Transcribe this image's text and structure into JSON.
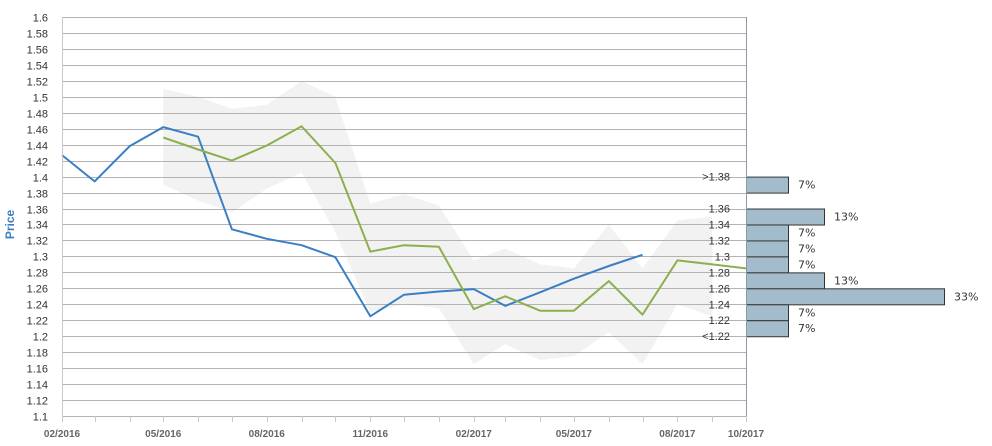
{
  "chart_data": {
    "type": "line",
    "ylabel": "Price",
    "ylim": [
      1.1,
      1.6
    ],
    "ytick_step": 0.02,
    "ytick_labels": [
      "1.1",
      "1.12",
      "1.14",
      "1.16",
      "1.18",
      "1.2",
      "1.22",
      "1.24",
      "1.26",
      "1.28",
      "1.3",
      "1.32",
      "1.34",
      "1.36",
      "1.38",
      "1.4",
      "1.42",
      "1.44",
      "1.46",
      "1.48",
      "1.5",
      "1.52",
      "1.54",
      "1.56",
      "1.58",
      "1.6"
    ],
    "xlim": [
      "2016-02-01",
      "2017-10-01"
    ],
    "x_tick_labels": [
      "02/2016",
      "05/2016",
      "08/2016",
      "11/2016",
      "02/2017",
      "05/2017",
      "08/2017",
      "10/2017"
    ],
    "x_tick_dates": [
      "2016-02-01",
      "2016-05-01",
      "2016-08-01",
      "2016-11-01",
      "2017-02-01",
      "2017-05-01",
      "2017-08-01",
      "2017-10-01"
    ],
    "grid": true,
    "colors": {
      "actual": "#3a7fc4",
      "forecast": "#8cb04e",
      "band": "#f2f2f2",
      "bar": "#a3bccb",
      "bar_stroke": "#333333",
      "ylabel": "#3a7fc4"
    },
    "series": [
      {
        "key": "actual",
        "x": [
          "2016-02-01",
          "2016-03-01",
          "2016-04-01",
          "2016-05-01",
          "2016-06-01",
          "2016-07-01",
          "2016-08-01",
          "2016-09-01",
          "2016-10-01",
          "2016-11-01",
          "2016-12-01",
          "2017-01-01",
          "2017-02-01",
          "2017-03-01",
          "2017-04-01",
          "2017-05-01",
          "2017-06-01",
          "2017-07-01"
        ],
        "y": [
          1.427,
          1.394,
          1.438,
          1.462,
          1.45,
          1.334,
          1.322,
          1.314,
          1.299,
          1.225,
          1.252,
          1.256,
          1.259,
          1.238,
          1.255,
          1.272,
          1.288,
          1.302
        ]
      },
      {
        "key": "forecast",
        "x": [
          "2016-05-01",
          "2016-06-01",
          "2016-07-01",
          "2016-08-01",
          "2016-09-01",
          "2016-10-01",
          "2016-11-01",
          "2016-12-01",
          "2017-01-01",
          "2017-02-01",
          "2017-03-01",
          "2017-04-01",
          "2017-05-01",
          "2017-06-01",
          "2017-07-01",
          "2017-08-01",
          "2017-09-01",
          "2017-10-01"
        ],
        "y": [
          1.449,
          1.434,
          1.42,
          1.439,
          1.463,
          1.417,
          1.306,
          1.314,
          1.312,
          1.234,
          1.25,
          1.232,
          1.232,
          1.269,
          1.227,
          1.295,
          1.29,
          1.285
        ]
      }
    ],
    "band": {
      "x": [
        "2016-05-01",
        "2016-06-01",
        "2016-07-01",
        "2016-08-01",
        "2016-09-01",
        "2016-10-01",
        "2016-11-01",
        "2016-12-01",
        "2017-01-01",
        "2017-02-01",
        "2017-03-01",
        "2017-04-01",
        "2017-05-01",
        "2017-06-01",
        "2017-07-01",
        "2017-08-01",
        "2017-09-01"
      ],
      "upper": [
        1.51,
        1.5,
        1.485,
        1.49,
        1.52,
        1.5,
        1.366,
        1.378,
        1.364,
        1.295,
        1.31,
        1.29,
        1.285,
        1.34,
        1.285,
        1.345,
        1.35
      ],
      "lower": [
        1.39,
        1.37,
        1.355,
        1.385,
        1.405,
        1.33,
        1.23,
        1.24,
        1.235,
        1.165,
        1.19,
        1.17,
        1.175,
        1.205,
        1.165,
        1.24,
        1.225
      ]
    },
    "distribution": [
      {
        "label": ">1.38",
        "pct_label": "7%",
        "pct": 7,
        "lo": 1.38,
        "hi": 1.4
      },
      {
        "label": "1.36",
        "pct_label": "13%",
        "pct": 13,
        "lo": 1.34,
        "hi": 1.36
      },
      {
        "label": "1.34",
        "pct_label": "",
        "pct": 0,
        "lo": 1.34,
        "hi": 1.34
      },
      {
        "label": "1.32",
        "pct_label": "7%",
        "pct": 7,
        "lo": 1.32,
        "hi": 1.34
      },
      {
        "label": "1.3",
        "pct_label": "7%",
        "pct": 7,
        "lo": 1.3,
        "hi": 1.32
      },
      {
        "label": "1.28",
        "pct_label": "7%",
        "pct": 7,
        "lo": 1.28,
        "hi": 1.3
      },
      {
        "label": "1.26",
        "pct_label": "13%",
        "pct": 13,
        "lo": 1.26,
        "hi": 1.28
      },
      {
        "label": "1.24",
        "pct_label": "33%",
        "pct": 33,
        "lo": 1.24,
        "hi": 1.26
      },
      {
        "label": "1.22",
        "pct_label": "7%",
        "pct": 7,
        "lo": 1.22,
        "hi": 1.24
      },
      {
        "label": "<1.22",
        "pct_label": "7%",
        "pct": 7,
        "lo": 1.2,
        "hi": 1.22
      }
    ]
  }
}
